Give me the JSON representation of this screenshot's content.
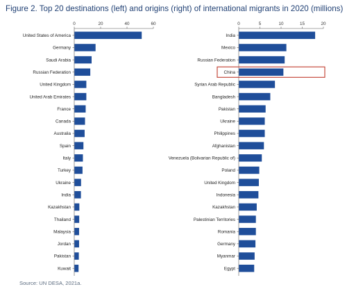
{
  "figure": {
    "title": "Figure 2. Top 20 destinations (left) and origins (right) of international migrants in 2020 (millions)",
    "source": "Source: UN DESA, 2021a.",
    "bar_color": "#1f4e9a",
    "highlight_color": "#c0392b"
  },
  "chart_data": [
    {
      "type": "bar",
      "orientation": "horizontal",
      "categories": [
        "United States of America",
        "Germany",
        "Saudi Arabia",
        "Russian Federation",
        "United Kingdom",
        "United Arab Emirates",
        "France",
        "Canada",
        "Australia",
        "Spain",
        "Italy",
        "Turkey",
        "Ukraine",
        "India",
        "Kazakhstan",
        "Thailand",
        "Malaysia",
        "Jordan",
        "Pakistan",
        "Kuwait"
      ],
      "values": [
        51,
        16,
        13,
        12,
        9,
        9,
        8.5,
        8,
        7.7,
        6.8,
        6.4,
        6.1,
        5,
        4.9,
        3.7,
        3.6,
        3.5,
        3.5,
        3.3,
        3.1
      ],
      "xlim": [
        0,
        60
      ],
      "xticks": [
        0,
        20,
        40,
        60
      ],
      "tick_labels": [
        "0",
        "20",
        "40",
        "60"
      ]
    },
    {
      "type": "bar",
      "orientation": "horizontal",
      "categories": [
        "India",
        "Mexico",
        "Russian Federation",
        "China",
        "Syrian Arab Republic",
        "Bangladesh",
        "Pakistan",
        "Ukraine",
        "Philippines",
        "Afghanistan",
        "Venezuela (Bolivarian Republic of)",
        "Poland",
        "United Kingdom",
        "Indonesia",
        "Kazakhstan",
        "Palestinian Territories",
        "Romania",
        "Germany",
        "Myanmar",
        "Egypt"
      ],
      "values": [
        18,
        11.2,
        10.8,
        10.5,
        8.5,
        7.4,
        6.3,
        6.1,
        6.1,
        5.9,
        5.4,
        4.8,
        4.7,
        4.6,
        4.2,
        4,
        4,
        3.9,
        3.7,
        3.6
      ],
      "xlim": [
        0,
        20
      ],
      "xticks": [
        0,
        5,
        10,
        15,
        20
      ],
      "tick_labels": [
        "0",
        "5",
        "10",
        "15",
        "20"
      ],
      "highlighted_category": "China"
    }
  ]
}
